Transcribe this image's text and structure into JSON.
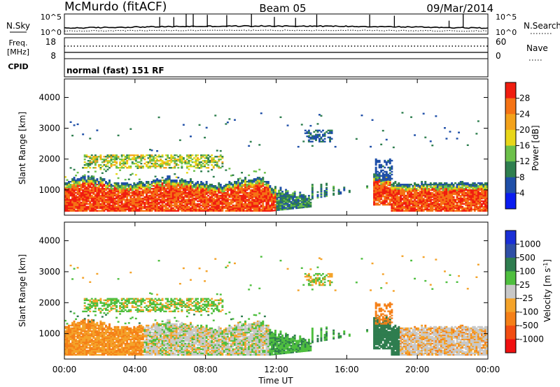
{
  "header": {
    "station": "McMurdo (fitACF)",
    "beam": "Beam 05",
    "date": "09/Mar/2014"
  },
  "panels": {
    "nsky_label": "N.Sky",
    "nsky_ticks": [
      "10^5",
      "10^0"
    ],
    "nsearch_label": "N.Search",
    "nsearch_ticks": [
      "10^5",
      "10^0"
    ],
    "freq_label": "Freq.",
    "freq_unit": "[MHz]",
    "freq_ticks": [
      "18",
      "8"
    ],
    "nave_label": "Nave",
    "nave_ticks": [
      "60",
      "0"
    ],
    "cpid_label": "CPID",
    "cpid_text": "normal (fast) 151 RF"
  },
  "axes": {
    "ylabel": "Slant Range [km]",
    "yticks": [
      "4000",
      "3000",
      "2000",
      "1000"
    ],
    "xlabel": "Time UT",
    "xticks": [
      "00:00",
      "04:00",
      "08:00",
      "12:00",
      "16:00",
      "20:00",
      "00:00"
    ]
  },
  "colorbars": {
    "power_label": "Power [dB]",
    "power_ticks": [
      "28",
      "24",
      "20",
      "16",
      "12",
      "8",
      "4"
    ],
    "power_colors": [
      "#0a1cf0",
      "#1f4fa8",
      "#2f7f4f",
      "#6cc04a",
      "#e8d619",
      "#f3a21b",
      "#f57315",
      "#f01d10"
    ],
    "velocity_label": "Velocity [m s",
    "velocity_sup": "-1",
    "velocity_ticks": [
      "1000",
      "500",
      "100",
      "25",
      "-25",
      "-100",
      "-500",
      "-1000"
    ],
    "velocity_colors": [
      "#1a2fd6",
      "#2f4fa6",
      "#2f7d4f",
      "#4fbf3f",
      "#c8c8c8",
      "#f4a32a",
      "#f58018",
      "#f24d12",
      "#f01010"
    ]
  },
  "chart_data": {
    "type": "heatmap",
    "x_range_hours": [
      0,
      24
    ],
    "y_range_km": [
      180,
      4600
    ],
    "power_scale_db": [
      0,
      32
    ],
    "velocity_scale_ms": [
      -1000,
      1000
    ],
    "time_hours": [
      0,
      2,
      4,
      6,
      8,
      10,
      12,
      14,
      16,
      18,
      20,
      22,
      24
    ],
    "echo_band_power": [
      {
        "range_km": [
          300,
          1300
        ],
        "time_hours": [
          0,
          11.6
        ],
        "power_db": 28
      },
      {
        "range_km": [
          300,
          1200
        ],
        "time_hours": [
          18.5,
          24
        ],
        "power_db": 28
      },
      {
        "range_km": [
          1700,
          2100
        ],
        "time_hours": [
          1,
          9
        ],
        "power_db": 14
      },
      {
        "range_km": [
          300,
          1000
        ],
        "time_hours": [
          12,
          14
        ],
        "power_db": 10
      }
    ],
    "echo_band_velocity": [
      {
        "range_km": [
          300,
          1300
        ],
        "time_hours": [
          0,
          4
        ],
        "velocity_ms": -100
      },
      {
        "range_km": [
          300,
          1300
        ],
        "time_hours": [
          5,
          11.5
        ],
        "velocity_ms": 0
      },
      {
        "range_km": [
          300,
          1200
        ],
        "time_hours": [
          18.5,
          24
        ],
        "velocity_ms": 0
      },
      {
        "range_km": [
          1500,
          2000
        ],
        "time_hours": [
          17.5,
          18.5
        ],
        "velocity_ms": -300
      }
    ]
  }
}
